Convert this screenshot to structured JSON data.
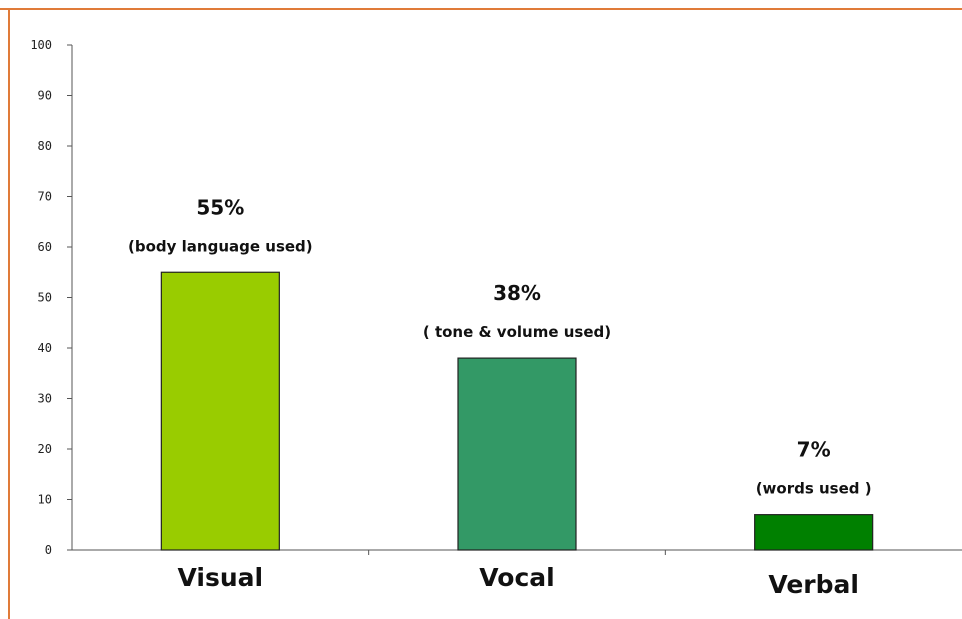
{
  "chart_data": {
    "type": "bar",
    "categories": [
      "Visual",
      "Vocal",
      "Verbal"
    ],
    "values": [
      55,
      38,
      7
    ],
    "value_labels": [
      "55%",
      "38%",
      "7%"
    ],
    "annotations": [
      "(body language used)",
      "( tone & volume used)",
      "(words used )"
    ],
    "colors": [
      "#99cc00",
      "#339966",
      "#008000"
    ],
    "bar_border": "#222222",
    "y_ticks": [
      "0",
      "10",
      "20",
      "30",
      "40",
      "50",
      "60",
      "70",
      "80",
      "90",
      "100"
    ],
    "ylim": [
      0,
      100
    ],
    "grid": false,
    "frame_color": "#e07b39"
  }
}
